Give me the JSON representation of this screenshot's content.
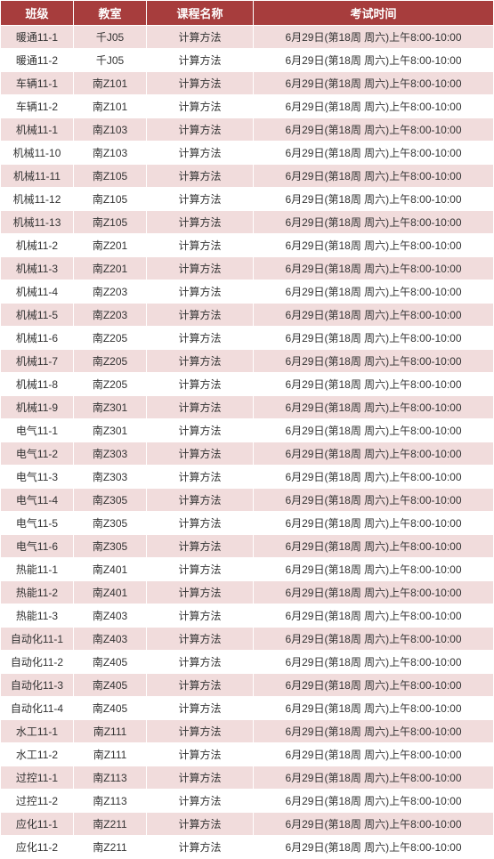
{
  "table": {
    "columns": [
      "班级",
      "教室",
      "课程名称",
      "考试时间"
    ],
    "header_bg": "#a73d3d",
    "header_fg": "#ffffff",
    "row_odd_bg": "#f1dcdc",
    "row_even_bg": "#ffffff",
    "border_color": "#ffffff",
    "font_size": 12,
    "rows": [
      [
        "暖通11-1",
        "千J05",
        "计算方法",
        "6月29日(第18周 周六)上午8:00-10:00"
      ],
      [
        "暖通11-2",
        "千J05",
        "计算方法",
        "6月29日(第18周 周六)上午8:00-10:00"
      ],
      [
        "车辆11-1",
        "南Z101",
        "计算方法",
        "6月29日(第18周 周六)上午8:00-10:00"
      ],
      [
        "车辆11-2",
        "南Z101",
        "计算方法",
        "6月29日(第18周 周六)上午8:00-10:00"
      ],
      [
        "机械11-1",
        "南Z103",
        "计算方法",
        "6月29日(第18周 周六)上午8:00-10:00"
      ],
      [
        "机械11-10",
        "南Z103",
        "计算方法",
        "6月29日(第18周 周六)上午8:00-10:00"
      ],
      [
        "机械11-11",
        "南Z105",
        "计算方法",
        "6月29日(第18周 周六)上午8:00-10:00"
      ],
      [
        "机械11-12",
        "南Z105",
        "计算方法",
        "6月29日(第18周 周六)上午8:00-10:00"
      ],
      [
        "机械11-13",
        "南Z105",
        "计算方法",
        "6月29日(第18周 周六)上午8:00-10:00"
      ],
      [
        "机械11-2",
        "南Z201",
        "计算方法",
        "6月29日(第18周 周六)上午8:00-10:00"
      ],
      [
        "机械11-3",
        "南Z201",
        "计算方法",
        "6月29日(第18周 周六)上午8:00-10:00"
      ],
      [
        "机械11-4",
        "南Z203",
        "计算方法",
        "6月29日(第18周 周六)上午8:00-10:00"
      ],
      [
        "机械11-5",
        "南Z203",
        "计算方法",
        "6月29日(第18周 周六)上午8:00-10:00"
      ],
      [
        "机械11-6",
        "南Z205",
        "计算方法",
        "6月29日(第18周 周六)上午8:00-10:00"
      ],
      [
        "机械11-7",
        "南Z205",
        "计算方法",
        "6月29日(第18周 周六)上午8:00-10:00"
      ],
      [
        "机械11-8",
        "南Z205",
        "计算方法",
        "6月29日(第18周 周六)上午8:00-10:00"
      ],
      [
        "机械11-9",
        "南Z301",
        "计算方法",
        "6月29日(第18周 周六)上午8:00-10:00"
      ],
      [
        "电气11-1",
        "南Z301",
        "计算方法",
        "6月29日(第18周 周六)上午8:00-10:00"
      ],
      [
        "电气11-2",
        "南Z303",
        "计算方法",
        "6月29日(第18周 周六)上午8:00-10:00"
      ],
      [
        "电气11-3",
        "南Z303",
        "计算方法",
        "6月29日(第18周 周六)上午8:00-10:00"
      ],
      [
        "电气11-4",
        "南Z305",
        "计算方法",
        "6月29日(第18周 周六)上午8:00-10:00"
      ],
      [
        "电气11-5",
        "南Z305",
        "计算方法",
        "6月29日(第18周 周六)上午8:00-10:00"
      ],
      [
        "电气11-6",
        "南Z305",
        "计算方法",
        "6月29日(第18周 周六)上午8:00-10:00"
      ],
      [
        "热能11-1",
        "南Z401",
        "计算方法",
        "6月29日(第18周 周六)上午8:00-10:00"
      ],
      [
        "热能11-2",
        "南Z401",
        "计算方法",
        "6月29日(第18周 周六)上午8:00-10:00"
      ],
      [
        "热能11-3",
        "南Z403",
        "计算方法",
        "6月29日(第18周 周六)上午8:00-10:00"
      ],
      [
        "自动化11-1",
        "南Z403",
        "计算方法",
        "6月29日(第18周 周六)上午8:00-10:00"
      ],
      [
        "自动化11-2",
        "南Z405",
        "计算方法",
        "6月29日(第18周 周六)上午8:00-10:00"
      ],
      [
        "自动化11-3",
        "南Z405",
        "计算方法",
        "6月29日(第18周 周六)上午8:00-10:00"
      ],
      [
        "自动化11-4",
        "南Z405",
        "计算方法",
        "6月29日(第18周 周六)上午8:00-10:00"
      ],
      [
        "水工11-1",
        "南Z111",
        "计算方法",
        "6月29日(第18周 周六)上午8:00-10:00"
      ],
      [
        "水工11-2",
        "南Z111",
        "计算方法",
        "6月29日(第18周 周六)上午8:00-10:00"
      ],
      [
        "过控11-1",
        "南Z113",
        "计算方法",
        "6月29日(第18周 周六)上午8:00-10:00"
      ],
      [
        "过控11-2",
        "南Z113",
        "计算方法",
        "6月29日(第18周 周六)上午8:00-10:00"
      ],
      [
        "应化11-1",
        "南Z211",
        "计算方法",
        "6月29日(第18周 周六)上午8:00-10:00"
      ],
      [
        "应化11-2",
        "南Z211",
        "计算方法",
        "6月29日(第18周 周六)上午8:00-10:00"
      ]
    ]
  }
}
